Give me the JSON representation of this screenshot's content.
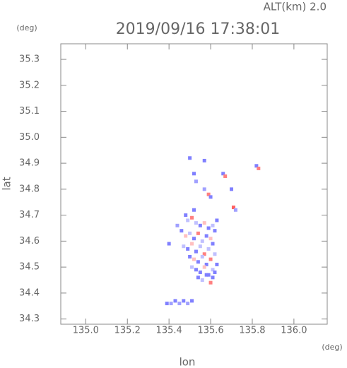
{
  "chart_data": {
    "type": "scatter",
    "title": "2019/09/16 17:38:01",
    "subtitle": "ALT(km) 2.0",
    "x_label": "lon",
    "y_label": "lat",
    "x_unit": "(deg)",
    "y_unit": "(deg)",
    "xlim": [
      134.88,
      136.16
    ],
    "ylim": [
      34.28,
      35.36
    ],
    "xticks": [
      {
        "value": 135,
        "label": "135.0"
      },
      135.2,
      135.4,
      135.6,
      135.8,
      {
        "value": 136,
        "label": "136.0"
      }
    ],
    "yticks": [
      34.3,
      34.4,
      34.5,
      34.6,
      34.7,
      34.8,
      34.9,
      {
        "value": 35,
        "label": "35.0"
      },
      35.1,
      35.2,
      35.3
    ],
    "x": [
      135.5,
      135.57,
      135.52,
      135.53,
      135.59,
      135.6,
      135.66,
      135.67,
      135.7,
      135.71,
      135.82,
      135.83,
      135.72,
      135.39,
      135.41,
      135.43,
      135.45,
      135.47,
      135.49,
      135.51,
      135.48,
      135.49,
      135.51,
      135.53,
      135.55,
      135.57,
      135.59,
      135.61,
      135.63,
      135.46,
      135.48,
      135.5,
      135.52,
      135.54,
      135.56,
      135.58,
      135.6,
      135.62,
      135.47,
      135.49,
      135.51,
      135.53,
      135.55,
      135.57,
      135.59,
      135.61,
      135.5,
      135.52,
      135.54,
      135.56,
      135.58,
      135.6,
      135.62,
      135.51,
      135.53,
      135.55,
      135.57,
      135.59,
      135.61,
      135.63,
      135.54,
      135.56,
      135.58,
      135.6,
      135.62,
      135.61,
      135.4,
      135.44,
      135.52,
      135.57
    ],
    "y": [
      34.92,
      34.91,
      34.86,
      34.83,
      34.78,
      34.77,
      34.86,
      34.85,
      34.8,
      34.73,
      34.89,
      34.88,
      34.72,
      34.36,
      34.36,
      34.37,
      34.36,
      34.37,
      34.36,
      34.37,
      34.7,
      34.68,
      34.69,
      34.67,
      34.66,
      34.67,
      34.65,
      34.66,
      34.68,
      34.64,
      34.62,
      34.63,
      34.61,
      34.63,
      34.6,
      34.62,
      34.61,
      34.64,
      34.58,
      34.57,
      34.59,
      34.56,
      34.58,
      34.55,
      34.57,
      34.59,
      34.54,
      34.53,
      34.52,
      34.54,
      34.51,
      34.53,
      34.55,
      34.5,
      34.49,
      34.48,
      34.5,
      34.47,
      34.49,
      34.51,
      34.46,
      34.45,
      34.47,
      34.44,
      34.48,
      34.46,
      34.59,
      34.66,
      34.72,
      34.8
    ],
    "colors": [
      "#8080ff",
      "#8080ff",
      "#8080ff",
      "#a0a0ff",
      "#ff8080",
      "#8080ff",
      "#8080ff",
      "#ff8080",
      "#8080ff",
      "#ff6060",
      "#8080ff",
      "#ff8080",
      "#a0a0ff",
      "#8080ff",
      "#a0a0ff",
      "#8080ff",
      "#a0a0ff",
      "#8080ff",
      "#a0a0ff",
      "#8080ff",
      "#8080ff",
      "#c0c0ff",
      "#ff8080",
      "#c0c0ff",
      "#8080ff",
      "#ffc0c0",
      "#8080ff",
      "#c0c0ff",
      "#8080ff",
      "#8080ff",
      "#ffc0c0",
      "#c0c0ff",
      "#8080ff",
      "#ff8080",
      "#c0c0ff",
      "#8080ff",
      "#ffc0c0",
      "#8080ff",
      "#c0c0ff",
      "#8080ff",
      "#ffc0c0",
      "#8080ff",
      "#c0c0ff",
      "#ff8080",
      "#c0c0ff",
      "#8080ff",
      "#8080ff",
      "#ffc0c0",
      "#8080ff",
      "#c0c0ff",
      "#8080ff",
      "#ff8080",
      "#c0c0ff",
      "#c0c0ff",
      "#8080ff",
      "#8080ff",
      "#ffc0c0",
      "#8080ff",
      "#c0c0ff",
      "#8080ff",
      "#8080ff",
      "#c0c0ff",
      "#8080ff",
      "#ff8080",
      "#8080ff",
      "#8080ff",
      "#8080ff",
      "#a0a0ff",
      "#8080ff",
      "#a0a0ff"
    ]
  }
}
